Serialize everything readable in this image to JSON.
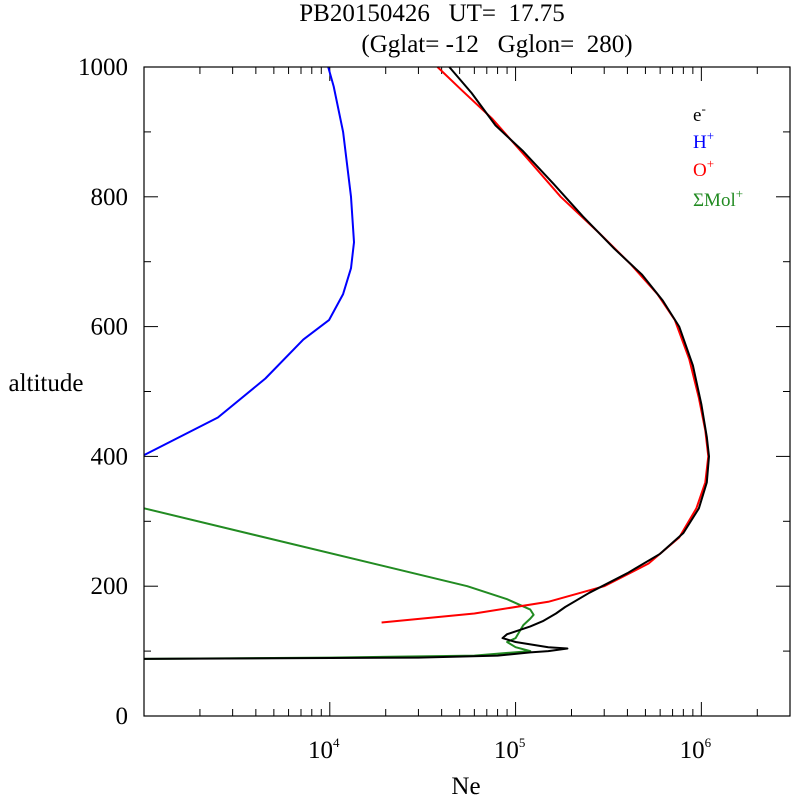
{
  "chart_data": {
    "type": "line",
    "title": "PB20150426   UT=  17.75",
    "subtitle": "(Gglat= -12   Gglon=  280)",
    "xlabel": "Ne",
    "ylabel": "altitude",
    "xscale": "log",
    "xlim": [
      1000,
      3000000
    ],
    "ylim": [
      0,
      1000
    ],
    "x_tick_labels": [
      {
        "value": 10000,
        "base": "10",
        "exp": "4"
      },
      {
        "value": 100000,
        "base": "10",
        "exp": "5"
      },
      {
        "value": 1000000,
        "base": "10",
        "exp": "6"
      }
    ],
    "y_ticks": [
      0,
      200,
      400,
      600,
      800,
      1000
    ],
    "grid": false,
    "legend_position": "top-right",
    "series": [
      {
        "name": "e-",
        "label_base": "e",
        "label_sup": "-",
        "color": "#000000",
        "points": [
          [
            1000,
            88
          ],
          [
            30000,
            90
          ],
          [
            80000,
            93
          ],
          [
            120000,
            98
          ],
          [
            150000,
            100
          ],
          [
            190000,
            104
          ],
          [
            150000,
            106
          ],
          [
            100000,
            114
          ],
          [
            85000,
            120
          ],
          [
            90000,
            126
          ],
          [
            120000,
            138
          ],
          [
            140000,
            146
          ],
          [
            165000,
            158
          ],
          [
            185000,
            168
          ],
          [
            250000,
            190
          ],
          [
            400000,
            220
          ],
          [
            600000,
            250
          ],
          [
            800000,
            282
          ],
          [
            970000,
            320
          ],
          [
            1070000,
            360
          ],
          [
            1100000,
            400
          ],
          [
            1070000,
            430
          ],
          [
            1000000,
            480
          ],
          [
            900000,
            540
          ],
          [
            760000,
            600
          ],
          [
            620000,
            640
          ],
          [
            480000,
            680
          ],
          [
            340000,
            720
          ],
          [
            230000,
            770
          ],
          [
            160000,
            820
          ],
          [
            110000,
            870
          ],
          [
            78000,
            910
          ],
          [
            58000,
            960
          ],
          [
            44000,
            1000
          ]
        ]
      },
      {
        "name": "H+",
        "label_base": "H",
        "label_sup": "+",
        "color": "#0000ff",
        "points": [
          [
            1000,
            402
          ],
          [
            2500,
            460
          ],
          [
            4500,
            520
          ],
          [
            7200,
            580
          ],
          [
            9900,
            610
          ],
          [
            11800,
            650
          ],
          [
            13000,
            690
          ],
          [
            13500,
            730
          ],
          [
            13000,
            800
          ],
          [
            11800,
            900
          ],
          [
            10500,
            970
          ],
          [
            9800,
            1000
          ]
        ]
      },
      {
        "name": "O+",
        "label_base": "O",
        "label_sup": "+",
        "color": "#ff0000",
        "points": [
          [
            19000,
            144
          ],
          [
            60000,
            158
          ],
          [
            150000,
            176
          ],
          [
            300000,
            200
          ],
          [
            520000,
            235
          ],
          [
            760000,
            275
          ],
          [
            940000,
            320
          ],
          [
            1050000,
            360
          ],
          [
            1090000,
            400
          ],
          [
            1050000,
            440
          ],
          [
            970000,
            490
          ],
          [
            860000,
            550
          ],
          [
            720000,
            610
          ],
          [
            580000,
            650
          ],
          [
            420000,
            695
          ],
          [
            280000,
            745
          ],
          [
            175000,
            800
          ],
          [
            115000,
            860
          ],
          [
            75000,
            920
          ],
          [
            51000,
            965
          ],
          [
            38000,
            1000
          ]
        ]
      },
      {
        "name": "ΣMol+",
        "label_base": "ΣMol",
        "label_sup": "+",
        "color": "#228b22",
        "points": [
          [
            1000,
            320
          ],
          [
            55000,
            200
          ],
          [
            90000,
            180
          ],
          [
            120000,
            164
          ],
          [
            125000,
            156
          ],
          [
            120000,
            150
          ],
          [
            115000,
            145
          ],
          [
            110000,
            140
          ],
          [
            100000,
            120
          ],
          [
            90000,
            114
          ],
          [
            100000,
            106
          ],
          [
            120000,
            100
          ],
          [
            60000,
            93
          ],
          [
            10000,
            90
          ],
          [
            1000,
            88
          ]
        ]
      }
    ]
  }
}
